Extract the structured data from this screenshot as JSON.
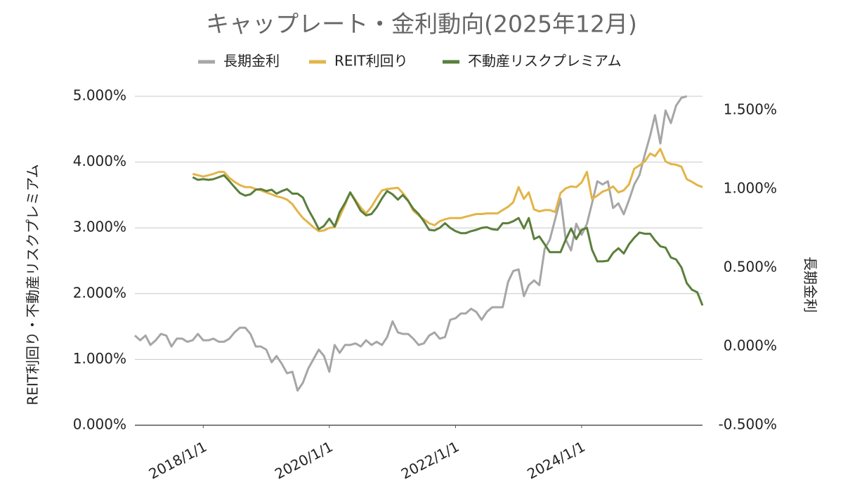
{
  "chart_data": {
    "type": "line",
    "title": "キャップレート・金利動向(2025年12月)",
    "ylabel": "REIT利回り・不動産リスクプレミアム",
    "y2label": "長期金利",
    "legend": "top",
    "grid": true,
    "xlim": [
      "2016/12/1",
      "2025/12/1"
    ],
    "xticks": [
      "2018/1/1",
      "2020/1/1",
      "2022/1/1",
      "2024/1/1"
    ],
    "ylim": [
      0,
      5
    ],
    "yticks": [
      {
        "value": 0,
        "label": "0.000%"
      },
      {
        "value": 1,
        "label": "1.000%"
      },
      {
        "value": 2,
        "label": "2.000%"
      },
      {
        "value": 3,
        "label": "3.000%"
      },
      {
        "value": 4,
        "label": "4.000%"
      },
      {
        "value": 5,
        "label": "5.000%"
      }
    ],
    "y2lim": [
      -0.5,
      1.59
    ],
    "y2ticks": [
      {
        "value": -0.5,
        "label": "-0.500%"
      },
      {
        "value": 0,
        "label": "0.000%"
      },
      {
        "value": 0.5,
        "label": "0.500%"
      },
      {
        "value": 1,
        "label": "1.000%"
      },
      {
        "value": 1.5,
        "label": "1.500%"
      }
    ],
    "x": [
      "2016/12/1",
      "2017/1/1",
      "2017/2/1",
      "2017/3/1",
      "2017/4/1",
      "2017/5/1",
      "2017/6/1",
      "2017/7/1",
      "2017/8/1",
      "2017/9/1",
      "2017/10/1",
      "2017/11/1",
      "2017/12/1",
      "2018/1/1",
      "2018/2/1",
      "2018/3/1",
      "2018/4/1",
      "2018/5/1",
      "2018/6/1",
      "2018/7/1",
      "2018/8/1",
      "2018/9/1",
      "2018/10/1",
      "2018/11/1",
      "2018/12/1",
      "2019/1/1",
      "2019/2/1",
      "2019/3/1",
      "2019/4/1",
      "2019/5/1",
      "2019/6/1",
      "2019/7/1",
      "2019/8/1",
      "2019/9/1",
      "2019/10/1",
      "2019/11/1",
      "2019/12/1",
      "2020/1/1",
      "2020/2/1",
      "2020/3/1",
      "2020/4/1",
      "2020/5/1",
      "2020/6/1",
      "2020/7/1",
      "2020/8/1",
      "2020/9/1",
      "2020/10/1",
      "2020/11/1",
      "2020/12/1",
      "2021/1/1",
      "2021/2/1",
      "2021/3/1",
      "2021/4/1",
      "2021/5/1",
      "2021/6/1",
      "2021/7/1",
      "2021/8/1",
      "2021/9/1",
      "2021/10/1",
      "2021/11/1",
      "2021/12/1",
      "2022/1/1",
      "2022/2/1",
      "2022/3/1",
      "2022/4/1",
      "2022/5/1",
      "2022/6/1",
      "2022/7/1",
      "2022/8/1",
      "2022/9/1",
      "2022/10/1",
      "2022/11/1",
      "2022/12/1",
      "2023/1/1",
      "2023/2/1",
      "2023/3/1",
      "2023/4/1",
      "2023/5/1",
      "2023/6/1",
      "2023/7/1",
      "2023/8/1",
      "2023/9/1",
      "2023/10/1",
      "2023/11/1",
      "2023/12/1",
      "2024/1/1",
      "2024/2/1",
      "2024/3/1",
      "2024/4/1",
      "2024/5/1",
      "2024/6/1",
      "2024/7/1",
      "2024/8/1",
      "2024/9/1",
      "2024/10/1",
      "2024/11/1",
      "2024/12/1",
      "2025/1/1",
      "2025/2/1",
      "2025/3/1",
      "2025/4/1",
      "2025/5/1",
      "2025/6/1",
      "2025/7/1",
      "2025/8/1",
      "2025/9/1",
      "2025/10/1",
      "2025/11/1",
      "2025/12/1"
    ],
    "series": [
      {
        "name": "長期金利",
        "color": "#a6a6a6",
        "axis": "y2",
        "values": [
          0.07,
          0.04,
          0.07,
          0.01,
          0.04,
          0.08,
          0.07,
          0.0,
          0.05,
          0.05,
          0.03,
          0.04,
          0.08,
          0.04,
          0.04,
          0.05,
          0.03,
          0.03,
          0.05,
          0.09,
          0.12,
          0.12,
          0.08,
          0.0,
          0.0,
          -0.02,
          -0.1,
          -0.06,
          -0.11,
          -0.17,
          -0.16,
          -0.28,
          -0.23,
          -0.14,
          -0.08,
          -0.02,
          -0.06,
          -0.16,
          0.01,
          -0.04,
          0.01,
          0.01,
          0.02,
          0.0,
          0.04,
          0.01,
          0.03,
          0.01,
          0.06,
          0.16,
          0.09,
          0.08,
          0.08,
          0.05,
          0.01,
          0.02,
          0.07,
          0.09,
          0.05,
          0.06,
          0.17,
          0.18,
          0.21,
          0.21,
          0.24,
          0.22,
          0.17,
          0.22,
          0.25,
          0.25,
          0.25,
          0.41,
          0.48,
          0.49,
          0.32,
          0.39,
          0.42,
          0.39,
          0.62,
          0.68,
          0.81,
          0.94,
          0.68,
          0.61,
          0.78,
          0.71,
          0.78,
          0.91,
          1.05,
          1.03,
          1.05,
          0.88,
          0.91,
          0.84,
          0.93,
          1.03,
          1.09,
          1.22,
          1.34,
          1.47,
          1.29,
          1.5,
          1.42,
          1.53,
          1.58,
          1.59,
          null,
          null,
          null
        ]
      },
      {
        "name": "REIT利回り",
        "color": "#e3b448",
        "values": [
          null,
          null,
          null,
          null,
          null,
          null,
          null,
          null,
          null,
          null,
          null,
          3.82,
          3.8,
          3.78,
          3.8,
          3.82,
          3.85,
          3.85,
          3.76,
          3.7,
          3.65,
          3.62,
          3.62,
          3.59,
          3.57,
          3.54,
          3.51,
          3.48,
          3.46,
          3.43,
          3.36,
          3.25,
          3.15,
          3.08,
          3.01,
          2.95,
          2.96,
          3.0,
          3.01,
          3.17,
          3.35,
          3.54,
          3.42,
          3.31,
          3.22,
          3.32,
          3.45,
          3.57,
          3.59,
          3.6,
          3.61,
          3.53,
          3.42,
          3.26,
          3.19,
          3.13,
          3.07,
          3.04,
          3.1,
          3.13,
          3.15,
          3.15,
          3.15,
          3.17,
          3.19,
          3.21,
          3.21,
          3.22,
          3.22,
          3.22,
          3.27,
          3.32,
          3.39,
          3.62,
          3.44,
          3.54,
          3.28,
          3.25,
          3.27,
          3.27,
          3.24,
          3.53,
          3.6,
          3.63,
          3.62,
          3.69,
          3.85,
          3.44,
          3.49,
          3.55,
          3.58,
          3.63,
          3.54,
          3.57,
          3.66,
          3.9,
          3.95,
          4.01,
          4.13,
          4.09,
          4.2,
          4.01,
          3.97,
          3.96,
          3.93,
          3.74,
          3.7,
          3.65,
          3.62
        ]
      },
      {
        "name": "不動産リスクプレミアム",
        "color": "#5a7f3c",
        "values": [
          null,
          null,
          null,
          null,
          null,
          null,
          null,
          null,
          null,
          null,
          null,
          3.77,
          3.73,
          3.74,
          3.73,
          3.74,
          3.77,
          3.8,
          3.71,
          3.62,
          3.53,
          3.49,
          3.51,
          3.58,
          3.59,
          3.56,
          3.58,
          3.52,
          3.56,
          3.59,
          3.52,
          3.52,
          3.46,
          3.28,
          3.14,
          2.98,
          3.03,
          3.14,
          3.02,
          3.24,
          3.38,
          3.54,
          3.4,
          3.26,
          3.19,
          3.21,
          3.31,
          3.45,
          3.56,
          3.51,
          3.43,
          3.5,
          3.41,
          3.29,
          3.21,
          3.1,
          2.97,
          2.96,
          3.0,
          3.07,
          3.0,
          2.95,
          2.92,
          2.92,
          2.95,
          2.97,
          3.0,
          3.01,
          2.98,
          2.97,
          3.07,
          3.07,
          3.1,
          3.15,
          2.99,
          3.15,
          2.83,
          2.87,
          2.75,
          2.63,
          2.63,
          2.63,
          2.82,
          2.99,
          2.83,
          2.97,
          3.0,
          2.67,
          2.49,
          2.49,
          2.5,
          2.62,
          2.69,
          2.61,
          2.75,
          2.85,
          2.93,
          2.91,
          2.91,
          2.81,
          2.72,
          2.7,
          2.55,
          2.52,
          2.4,
          2.16,
          2.06,
          2.02,
          1.82
        ]
      }
    ]
  }
}
